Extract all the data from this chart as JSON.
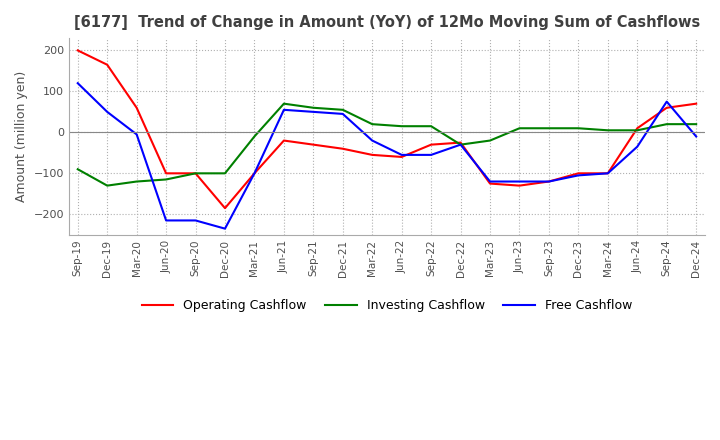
{
  "title": "[6177]  Trend of Change in Amount (YoY) of 12Mo Moving Sum of Cashflows",
  "ylabel": "Amount (million yen)",
  "x_labels": [
    "Sep-19",
    "Dec-19",
    "Mar-20",
    "Jun-20",
    "Sep-20",
    "Dec-20",
    "Mar-21",
    "Jun-21",
    "Sep-21",
    "Dec-21",
    "Mar-22",
    "Jun-22",
    "Sep-22",
    "Dec-22",
    "Mar-23",
    "Jun-23",
    "Sep-23",
    "Dec-23",
    "Mar-24",
    "Jun-24",
    "Sep-24",
    "Dec-24"
  ],
  "operating": [
    200,
    165,
    60,
    -100,
    -100,
    -185,
    -100,
    -20,
    -30,
    -40,
    -55,
    -60,
    -30,
    -25,
    -125,
    -130,
    -120,
    -100,
    -100,
    10,
    60,
    70
  ],
  "investing": [
    -90,
    -130,
    -120,
    -115,
    -100,
    -100,
    -10,
    70,
    60,
    55,
    20,
    15,
    15,
    -30,
    -20,
    10,
    10,
    10,
    5,
    5,
    20,
    20
  ],
  "free": [
    120,
    50,
    -5,
    -215,
    -215,
    -235,
    -100,
    55,
    50,
    45,
    -20,
    -55,
    -55,
    -30,
    -120,
    -120,
    -120,
    -105,
    -100,
    -35,
    75,
    -10
  ],
  "ylim": [
    -250,
    230
  ],
  "yticks": [
    -200,
    -100,
    0,
    100,
    200
  ],
  "operating_color": "#ff0000",
  "investing_color": "#008000",
  "free_color": "#0000ff",
  "background_color": "#ffffff",
  "grid_color": "#b0b0b0",
  "title_color": "#404040",
  "legend_labels": [
    "Operating Cashflow",
    "Investing Cashflow",
    "Free Cashflow"
  ]
}
